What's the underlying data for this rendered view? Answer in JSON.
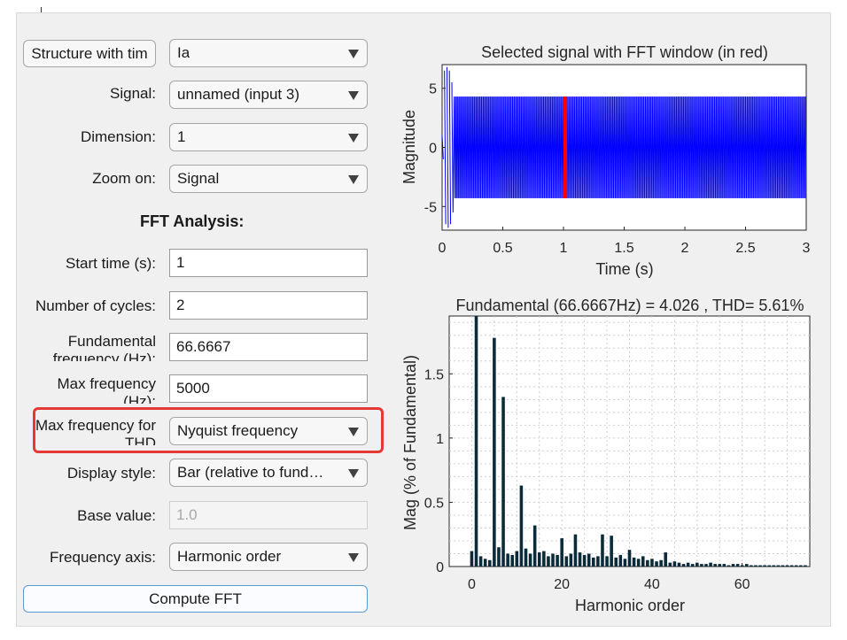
{
  "form": {
    "structure_button": "Structure with tim",
    "structure_value": "Ia",
    "signal_label": "Signal:",
    "signal_value": "unnamed (input 3)",
    "dimension_label": "Dimension:",
    "dimension_value": "1",
    "zoom_label": "Zoom on:",
    "zoom_value": "Signal",
    "fft_title": "FFT Analysis:",
    "start_time_label": "Start time (s):",
    "start_time_value": "1",
    "cycles_label": "Number of cycles:",
    "cycles_value": "2",
    "fundamental_label": "Fundamental frequency (Hz):",
    "fundamental_value": "66.6667",
    "maxfreq_label": "Max frequency (Hz):",
    "maxfreq_value": "5000",
    "maxthd_label": "Max frequency for THD",
    "maxthd_value": "Nyquist frequency",
    "display_label": "Display style:",
    "display_value": "Bar (relative to fund…",
    "base_label": "Base value:",
    "base_value": "1.0",
    "freqaxis_label": "Frequency axis:",
    "freqaxis_value": "Harmonic order",
    "compute_button": "Compute FFT"
  },
  "colors": {
    "signal": "#0000ff",
    "fft_window": "#ff0000",
    "bars": "#0b2a3a",
    "highlight": "#e53935"
  },
  "chart_data": [
    {
      "type": "line",
      "title": "Selected signal with FFT window (in red)",
      "xlabel": "Time (s)",
      "ylabel": "Magnitude",
      "xlim": [
        0,
        3
      ],
      "ylim": [
        -7,
        7
      ],
      "xticks": [
        "0",
        "0.5",
        "1",
        "1.5",
        "2",
        "2.5",
        "3"
      ],
      "yticks": [
        "5",
        "0",
        "-5"
      ],
      "series": [
        {
          "role": "signal",
          "steady_amplitude": 4.3,
          "start_time": 0.1
        },
        {
          "role": "fft-window",
          "t_start": 1.0,
          "t_end": 1.03
        }
      ],
      "grid": false
    },
    {
      "type": "bar",
      "title": "Fundamental (66.6667Hz) = 4.026 , THD= 5.61%",
      "xlabel": "Harmonic order",
      "ylabel": "Mag (% of Fundamental)",
      "xlim": [
        -5,
        75
      ],
      "ylim": [
        0,
        1.95
      ],
      "xticks": [
        "0",
        "20",
        "40",
        "60"
      ],
      "yticks": [
        "0",
        "0.5",
        "1",
        "1.5"
      ],
      "grid": true,
      "x": [
        0,
        1,
        2,
        3,
        4,
        5,
        6,
        7,
        8,
        9,
        10,
        11,
        12,
        13,
        14,
        15,
        16,
        17,
        18,
        19,
        20,
        21,
        22,
        23,
        24,
        25,
        26,
        27,
        28,
        29,
        30,
        31,
        32,
        33,
        34,
        35,
        36,
        37,
        38,
        39,
        40,
        41,
        42,
        43,
        44,
        45,
        46,
        47,
        48,
        49,
        50,
        51,
        52,
        53,
        54,
        55,
        56,
        57,
        58,
        59,
        60,
        61,
        62,
        63,
        64,
        65,
        66,
        67,
        68,
        69,
        70,
        71,
        72,
        73,
        74
      ],
      "values": [
        0.12,
        1.95,
        0.08,
        0.06,
        0.05,
        1.78,
        0.15,
        1.32,
        0.1,
        0.09,
        0.12,
        0.63,
        0.14,
        0.1,
        0.32,
        0.11,
        0.12,
        0.08,
        0.1,
        0.09,
        0.22,
        0.08,
        0.1,
        0.25,
        0.11,
        0.09,
        0.1,
        0.07,
        0.08,
        0.25,
        0.08,
        0.24,
        0.07,
        0.09,
        0.06,
        0.13,
        0.07,
        0.06,
        0.08,
        0.05,
        0.06,
        0.04,
        0.05,
        0.11,
        0.03,
        0.04,
        0.03,
        0.02,
        0.03,
        0.02,
        0.03,
        0.02,
        0.02,
        0.03,
        0.02,
        0.02,
        0.02,
        0.01,
        0.02,
        0.02,
        0.01,
        0.02,
        0.01,
        0.01,
        0.01,
        0.01,
        0.01,
        0.01,
        0.01,
        0.01,
        0.01,
        0.01,
        0.01,
        0.01,
        0.01
      ]
    }
  ]
}
